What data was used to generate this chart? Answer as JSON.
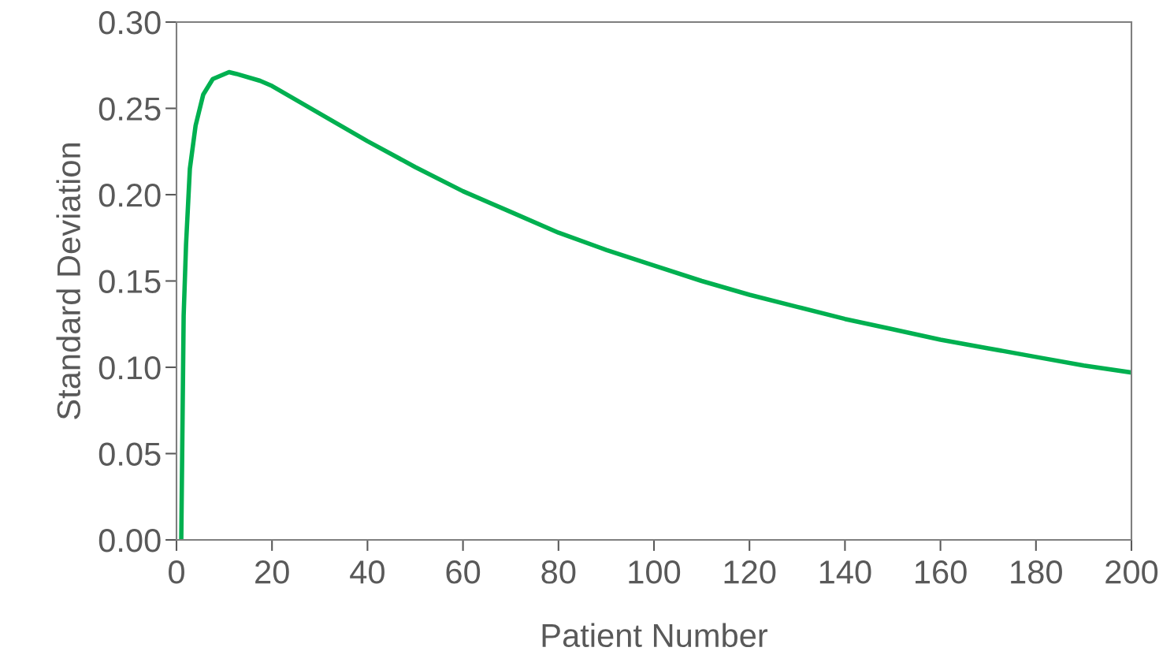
{
  "chart_data": {
    "type": "line",
    "xlabel": "Patient Number",
    "ylabel": "Standard Deviation",
    "xlim": [
      0,
      200
    ],
    "xticks": [
      0,
      20,
      40,
      60,
      80,
      100,
      120,
      140,
      160,
      180,
      200
    ],
    "ylim": [
      0,
      0.3
    ],
    "yticks": [
      {
        "value": 0,
        "label": "0.00"
      },
      {
        "value": 0.05,
        "label": "0.05"
      },
      {
        "value": 0.1,
        "label": "0.10"
      },
      {
        "value": 0.15,
        "label": "0.15"
      },
      {
        "value": 0.2,
        "label": "0.20"
      },
      {
        "value": 0.25,
        "label": "0.25"
      },
      {
        "value": 0.3,
        "label": "0.30"
      }
    ],
    "grid": false,
    "marker": "none",
    "line_style": "solid",
    "series": [
      {
        "color": "#00b050",
        "x": [
          1,
          1.5,
          2,
          2.8,
          4,
          5.6,
          7.6,
          11,
          12.5,
          17.5,
          20,
          30,
          40,
          50,
          60,
          70,
          80,
          90,
          100,
          110,
          120,
          130,
          140,
          150,
          160,
          170,
          180,
          190,
          200
        ],
        "values": [
          0,
          0.13,
          0.171,
          0.215,
          0.24,
          0.258,
          0.267,
          0.271,
          0.27,
          0.266,
          0.263,
          0.247,
          0.231,
          0.216,
          0.202,
          0.19,
          0.178,
          0.168,
          0.159,
          0.15,
          0.142,
          0.135,
          0.128,
          0.122,
          0.116,
          0.111,
          0.106,
          0.101,
          0.097
        ]
      }
    ]
  }
}
